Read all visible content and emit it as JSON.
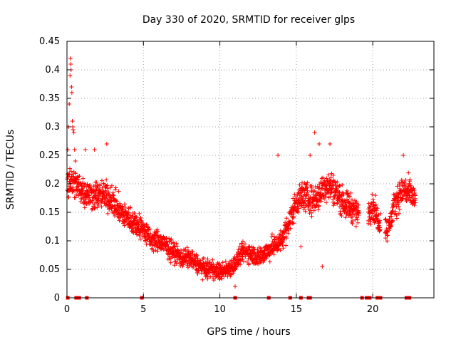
{
  "chart_data": {
    "type": "scatter",
    "title": "Day 330 of 2020, SRMTID for receiver glps",
    "xlabel": "GPS time / hours",
    "ylabel": "SRMTID / TECUs",
    "xlim": [
      0,
      24
    ],
    "ylim": [
      0,
      0.45
    ],
    "xticks": [
      0,
      5,
      10,
      15,
      20
    ],
    "yticks": [
      0,
      0.05,
      0.1,
      0.15,
      0.2,
      0.25,
      0.3,
      0.35,
      0.4,
      0.45
    ],
    "grid": true,
    "marker": "plus",
    "color": "#ff0000",
    "trend": [
      [
        0.0,
        0.21
      ],
      [
        0.5,
        0.2
      ],
      [
        1.0,
        0.19
      ],
      [
        1.5,
        0.18
      ],
      [
        2.0,
        0.18
      ],
      [
        2.5,
        0.18
      ],
      [
        3.0,
        0.17
      ],
      [
        3.5,
        0.15
      ],
      [
        4.0,
        0.14
      ],
      [
        4.5,
        0.13
      ],
      [
        5.0,
        0.12
      ],
      [
        5.5,
        0.1
      ],
      [
        6.0,
        0.1
      ],
      [
        6.5,
        0.09
      ],
      [
        7.0,
        0.08
      ],
      [
        7.5,
        0.07
      ],
      [
        8.0,
        0.07
      ],
      [
        8.5,
        0.06
      ],
      [
        9.0,
        0.05
      ],
      [
        9.5,
        0.05
      ],
      [
        10.0,
        0.045
      ],
      [
        10.5,
        0.05
      ],
      [
        11.0,
        0.06
      ],
      [
        11.5,
        0.08
      ],
      [
        12.0,
        0.08
      ],
      [
        12.5,
        0.07
      ],
      [
        13.0,
        0.08
      ],
      [
        13.5,
        0.09
      ],
      [
        14.0,
        0.1
      ],
      [
        14.5,
        0.13
      ],
      [
        15.0,
        0.17
      ],
      [
        15.5,
        0.18
      ],
      [
        16.0,
        0.17
      ],
      [
        16.5,
        0.18
      ],
      [
        17.0,
        0.2
      ],
      [
        17.5,
        0.19
      ],
      [
        18.0,
        0.17
      ],
      [
        18.5,
        0.16
      ],
      [
        19.0,
        0.15
      ],
      [
        19.5,
        0.15
      ],
      [
        20.0,
        0.16
      ],
      [
        20.5,
        0.13
      ],
      [
        21.0,
        0.12
      ],
      [
        21.5,
        0.17
      ],
      [
        22.0,
        0.19
      ],
      [
        22.5,
        0.18
      ],
      [
        22.8,
        0.17
      ]
    ],
    "spread": 0.04,
    "gaps": [
      [
        19.1,
        19.7
      ],
      [
        20.5,
        20.8
      ]
    ],
    "spike": [
      [
        0.05,
        0.26
      ],
      [
        0.1,
        0.3
      ],
      [
        0.15,
        0.34
      ],
      [
        0.2,
        0.39
      ],
      [
        0.22,
        0.42
      ],
      [
        0.25,
        0.41
      ],
      [
        0.27,
        0.4
      ],
      [
        0.3,
        0.37
      ],
      [
        0.32,
        0.36
      ],
      [
        0.35,
        0.31
      ],
      [
        0.38,
        0.3
      ],
      [
        0.4,
        0.295
      ],
      [
        0.45,
        0.29
      ],
      [
        0.5,
        0.26
      ],
      [
        0.55,
        0.24
      ]
    ],
    "outliers": [
      [
        16.2,
        0.29
      ],
      [
        16.5,
        0.27
      ],
      [
        17.2,
        0.27
      ],
      [
        15.9,
        0.25
      ],
      [
        1.2,
        0.26
      ],
      [
        1.8,
        0.26
      ],
      [
        2.6,
        0.27
      ],
      [
        13.8,
        0.25
      ],
      [
        22.0,
        0.25
      ],
      [
        16.7,
        0.055
      ],
      [
        15.3,
        0.09
      ],
      [
        11.0,
        0.02
      ]
    ],
    "zero_points_x": [
      0.05,
      0.6,
      0.8,
      1.3,
      4.9,
      11.0,
      13.2,
      14.6,
      15.3,
      15.8,
      15.9,
      19.3,
      19.6,
      19.8,
      20.3,
      20.5,
      22.2,
      22.4
    ],
    "n_points": 2200
  }
}
